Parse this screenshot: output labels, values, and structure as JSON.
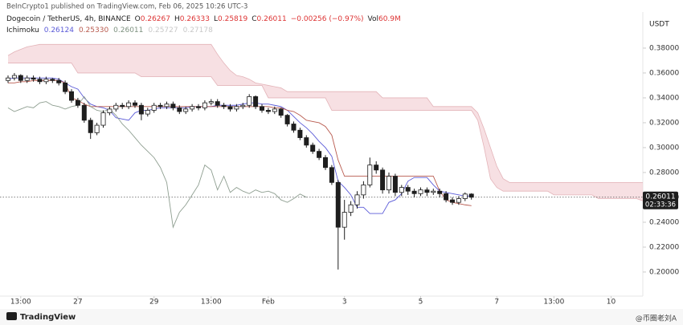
{
  "header": {
    "publisher": "BeInCrypto1 published on TradingView.com, Feb 06, 2025 10:26 UTC-3",
    "symbol": "Dogecoin / TetherUS, 4h, BINANCE",
    "ohlc": [
      {
        "key": "O",
        "value": "0.26267"
      },
      {
        "key": "H",
        "value": "0.26333"
      },
      {
        "key": "L",
        "value": "0.25819"
      },
      {
        "key": "C",
        "value": "0.26011"
      }
    ],
    "change": "−0.00256 (−0.97%)",
    "volume_key": "Vol",
    "volume": "60.9M",
    "currency": "USDT"
  },
  "footer": {
    "brand": "TradingView",
    "watermark": "@币圈老刘A"
  },
  "chart_data": {
    "type": "candlestick",
    "categories": [
      null,
      null,
      "13:00",
      null,
      null,
      null,
      null,
      null,
      null,
      null,
      null,
      "27",
      null,
      null,
      null,
      null,
      null,
      null,
      null,
      null,
      null,
      null,
      null,
      "29",
      null,
      null,
      null,
      null,
      null,
      null,
      null,
      null,
      "13:00",
      null,
      null,
      null,
      null,
      null,
      null,
      null,
      null,
      "Feb",
      null,
      null,
      null,
      null,
      null,
      null,
      null,
      null,
      null,
      null,
      null,
      "3",
      null,
      null,
      null,
      null,
      null,
      null,
      null,
      null,
      null,
      null,
      null,
      "5",
      null,
      null,
      null,
      null,
      null,
      null,
      null,
      null,
      null,
      null,
      null,
      "7",
      null,
      null,
      null,
      null,
      null,
      null,
      null,
      null,
      "13:00",
      null,
      null,
      null,
      null,
      null,
      null,
      null,
      null,
      "10",
      null,
      null,
      null,
      null,
      null
    ],
    "open": [
      0.354,
      0.356,
      0.358,
      0.354,
      0.356,
      0.355,
      0.353,
      0.355,
      0.354,
      0.352,
      0.345,
      0.338,
      0.334,
      0.322,
      0.312,
      0.318,
      0.328,
      0.331,
      0.334,
      0.333,
      0.336,
      0.334,
      0.327,
      0.33,
      0.334,
      0.333,
      0.335,
      0.332,
      0.329,
      0.331,
      0.333,
      0.332,
      0.336,
      0.337,
      0.334,
      0.333,
      0.331,
      0.333,
      0.334,
      0.341,
      0.333,
      0.33,
      0.329,
      0.331,
      0.326,
      0.319,
      0.314,
      0.308,
      0.302,
      0.297,
      0.292,
      0.284,
      0.272,
      0.236,
      0.248,
      0.254,
      0.262,
      0.27,
      0.286,
      0.282,
      0.266,
      0.277,
      0.264,
      0.268,
      0.265,
      0.263,
      0.266,
      0.264,
      0.265,
      0.263,
      0.258,
      0.256,
      0.259,
      0.26267,
      null,
      null,
      null,
      null,
      null,
      null,
      null,
      null,
      null,
      null,
      null,
      null,
      null,
      null,
      null,
      null,
      null,
      null,
      null,
      null,
      null,
      null,
      null,
      null,
      null,
      null,
      null
    ],
    "high": [
      0.358,
      0.36,
      0.359,
      0.358,
      0.358,
      0.357,
      0.357,
      0.356,
      0.356,
      0.354,
      0.347,
      0.34,
      0.336,
      0.324,
      0.32,
      0.33,
      0.333,
      0.336,
      0.336,
      0.338,
      0.338,
      0.336,
      0.332,
      0.336,
      0.336,
      0.337,
      0.337,
      0.334,
      0.333,
      0.335,
      0.335,
      0.338,
      0.339,
      0.339,
      0.336,
      0.335,
      0.335,
      0.336,
      0.343,
      0.342,
      0.335,
      0.332,
      0.333,
      0.332,
      0.327,
      0.321,
      0.316,
      0.31,
      0.304,
      0.299,
      0.294,
      0.286,
      0.274,
      0.258,
      0.257,
      0.265,
      0.273,
      0.292,
      0.289,
      0.284,
      0.28,
      0.279,
      0.27,
      0.27,
      0.267,
      0.268,
      0.268,
      0.267,
      0.267,
      0.265,
      0.26,
      0.261,
      0.264,
      0.26333,
      null,
      null,
      null,
      null,
      null,
      null,
      null,
      null,
      null,
      null,
      null,
      null,
      null,
      null,
      null,
      null,
      null,
      null,
      null,
      null,
      null,
      null,
      null,
      null,
      null,
      null,
      null
    ],
    "low": [
      0.352,
      0.354,
      0.352,
      0.352,
      0.353,
      0.351,
      0.351,
      0.352,
      0.35,
      0.343,
      0.336,
      0.332,
      0.32,
      0.307,
      0.31,
      0.316,
      0.326,
      0.329,
      0.331,
      0.331,
      0.332,
      0.322,
      0.325,
      0.328,
      0.331,
      0.331,
      0.33,
      0.327,
      0.327,
      0.329,
      0.33,
      0.33,
      0.334,
      0.332,
      0.331,
      0.329,
      0.329,
      0.331,
      0.332,
      0.331,
      0.328,
      0.327,
      0.327,
      0.324,
      0.317,
      0.312,
      0.306,
      0.3,
      0.295,
      0.29,
      0.282,
      0.27,
      0.202,
      0.226,
      0.245,
      0.251,
      0.259,
      0.268,
      0.279,
      0.263,
      0.263,
      0.261,
      0.261,
      0.262,
      0.26,
      0.261,
      0.261,
      0.262,
      0.26,
      0.256,
      0.254,
      0.254,
      0.257,
      0.25819,
      null,
      null,
      null,
      null,
      null,
      null,
      null,
      null,
      null,
      null,
      null,
      null,
      null,
      null,
      null,
      null,
      null,
      null,
      null,
      null,
      null,
      null,
      null,
      null,
      null,
      null,
      null
    ],
    "close": [
      0.356,
      0.358,
      0.354,
      0.356,
      0.355,
      0.353,
      0.355,
      0.354,
      0.352,
      0.345,
      0.338,
      0.334,
      0.322,
      0.312,
      0.318,
      0.328,
      0.331,
      0.334,
      0.333,
      0.336,
      0.334,
      0.327,
      0.33,
      0.334,
      0.333,
      0.335,
      0.332,
      0.329,
      0.331,
      0.333,
      0.332,
      0.336,
      0.337,
      0.334,
      0.333,
      0.331,
      0.333,
      0.334,
      0.341,
      0.333,
      0.33,
      0.329,
      0.331,
      0.326,
      0.319,
      0.314,
      0.308,
      0.302,
      0.297,
      0.292,
      0.284,
      0.272,
      0.236,
      0.248,
      0.254,
      0.262,
      0.27,
      0.286,
      0.282,
      0.266,
      0.277,
      0.264,
      0.268,
      0.265,
      0.263,
      0.266,
      0.264,
      0.265,
      0.263,
      0.258,
      0.256,
      0.259,
      0.26267,
      0.26011,
      null,
      null,
      null,
      null,
      null,
      null,
      null,
      null,
      null,
      null,
      null,
      null,
      null,
      null,
      null,
      null,
      null,
      null,
      null,
      null,
      null,
      null,
      null,
      null,
      null,
      null,
      null
    ],
    "up_color": "#ffffff",
    "down_color": "#1e1e1e",
    "wick_color": "#1e1e1e",
    "ichimoku": {
      "label": "Ichimoku",
      "legend": [
        {
          "label": "0.26124",
          "color": "#5b5bd8"
        },
        {
          "label": "0.25330",
          "color": "#b85a4e"
        },
        {
          "label": "0.26011",
          "color": "#7d917f"
        },
        {
          "label": "0.25727",
          "color": "#c8c8c8"
        },
        {
          "label": "0.27178",
          "color": "#c8c8c8"
        }
      ],
      "lines": [
        {
          "color": "#5b5bd8",
          "values": [
            0.355,
            0.356,
            0.356,
            0.356,
            0.356,
            0.356,
            0.356,
            0.356,
            0.355,
            0.352,
            0.349,
            0.347,
            0.34,
            0.335,
            0.333,
            0.332,
            0.33,
            0.324,
            0.323,
            0.322,
            0.328,
            0.33,
            0.33,
            0.331,
            0.332,
            0.332,
            0.332,
            0.332,
            0.332,
            0.333,
            0.333,
            0.333,
            0.333,
            0.334,
            0.334,
            0.334,
            0.334,
            0.335,
            0.336,
            0.336,
            0.335,
            0.335,
            0.334,
            0.333,
            0.33,
            0.325,
            0.32,
            0.316,
            0.311,
            0.305,
            0.3,
            0.293,
            0.273,
            0.268,
            0.262,
            0.252,
            0.252,
            0.247,
            0.247,
            0.247,
            0.256,
            0.258,
            0.263,
            0.273,
            0.276,
            0.276,
            0.276,
            0.27,
            0.265,
            0.264,
            0.263,
            0.262,
            0.261,
            0.26124,
            null,
            null,
            null,
            null,
            null,
            null,
            null,
            null,
            null,
            null,
            null,
            null,
            null,
            null,
            null,
            null,
            null,
            null,
            null,
            null,
            null,
            null,
            null,
            null,
            null,
            null,
            null
          ]
        },
        {
          "color": "#b85a4e",
          "values": [
            0.352,
            0.352,
            0.353,
            0.353,
            0.354,
            0.354,
            0.354,
            0.354,
            0.354,
            0.352,
            0.34,
            0.338,
            0.335,
            0.333,
            0.333,
            0.333,
            0.333,
            0.333,
            0.333,
            0.333,
            0.333,
            0.333,
            0.333,
            0.333,
            0.333,
            0.333,
            0.333,
            0.333,
            0.333,
            0.333,
            0.333,
            0.333,
            0.333,
            0.333,
            0.333,
            0.333,
            0.333,
            0.333,
            0.333,
            0.333,
            0.333,
            0.333,
            0.332,
            0.332,
            0.33,
            0.329,
            0.326,
            0.322,
            0.321,
            0.32,
            0.317,
            0.31,
            0.29,
            0.277,
            0.277,
            0.277,
            0.277,
            0.277,
            0.277,
            0.277,
            0.277,
            0.277,
            0.277,
            0.277,
            0.277,
            0.277,
            0.277,
            0.277,
            0.265,
            0.258,
            0.256,
            0.255,
            0.254,
            0.2533,
            null,
            null,
            null,
            null,
            null,
            null,
            null,
            null,
            null,
            null,
            null,
            null,
            null,
            null,
            null,
            null,
            null,
            null,
            null,
            null,
            null,
            null,
            null,
            null,
            null,
            null,
            null
          ]
        },
        {
          "color": "#8e9e90",
          "values": [
            0.332,
            0.329,
            0.331,
            0.333,
            0.332,
            0.336,
            0.337,
            0.334,
            0.333,
            0.331,
            0.333,
            0.334,
            0.341,
            0.333,
            0.33,
            0.329,
            0.331,
            0.326,
            0.319,
            0.314,
            0.308,
            0.302,
            0.297,
            0.292,
            0.284,
            0.272,
            0.236,
            0.248,
            0.254,
            0.262,
            0.27,
            0.286,
            0.282,
            0.266,
            0.277,
            0.264,
            0.268,
            0.265,
            0.263,
            0.266,
            0.264,
            0.265,
            0.263,
            0.258,
            0.256,
            0.259,
            0.26267,
            0.26011,
            null,
            null,
            null,
            null,
            null,
            null,
            null,
            null,
            null,
            null,
            null,
            null,
            null,
            null,
            null,
            null,
            null,
            null,
            null,
            null,
            null,
            null,
            null,
            null,
            null,
            null,
            null,
            null,
            null,
            null,
            null,
            null,
            null,
            null,
            null,
            null,
            null,
            null,
            null,
            null,
            null,
            null,
            null,
            null,
            null,
            null,
            null,
            null,
            null,
            null,
            null,
            null,
            null
          ]
        }
      ],
      "cloud": {
        "color": "#f4d6d9",
        "edge_color": "#e3b3b8",
        "span_a": [
          0.368,
          0.368,
          0.368,
          0.368,
          0.368,
          0.368,
          0.368,
          0.368,
          0.368,
          0.368,
          0.368,
          0.36,
          0.36,
          0.36,
          0.36,
          0.36,
          0.36,
          0.36,
          0.36,
          0.36,
          0.36,
          0.357,
          0.357,
          0.357,
          0.357,
          0.357,
          0.357,
          0.357,
          0.357,
          0.357,
          0.357,
          0.357,
          0.357,
          0.35,
          0.35,
          0.35,
          0.35,
          0.35,
          0.35,
          0.35,
          0.35,
          0.34,
          0.34,
          0.34,
          0.34,
          0.34,
          0.34,
          0.34,
          0.34,
          0.34,
          0.34,
          0.33,
          0.33,
          0.33,
          0.33,
          0.33,
          0.33,
          0.33,
          0.33,
          0.33,
          0.33,
          0.33,
          0.33,
          0.33,
          0.33,
          0.33,
          0.33,
          0.33,
          0.33,
          0.33,
          0.33,
          0.33,
          0.33,
          0.33,
          0.322,
          0.3,
          0.275,
          0.268,
          0.265,
          0.265,
          0.265,
          0.265,
          0.265,
          0.265,
          0.265,
          0.265,
          0.262,
          0.262,
          0.262,
          0.262,
          0.262,
          0.262,
          0.262,
          0.259,
          0.259,
          0.259,
          0.259,
          0.259,
          0.259,
          0.259,
          0.25727
        ],
        "span_b": [
          0.374,
          0.377,
          0.379,
          0.381,
          0.382,
          0.383,
          0.383,
          0.383,
          0.383,
          0.383,
          0.383,
          0.383,
          0.383,
          0.383,
          0.383,
          0.383,
          0.383,
          0.383,
          0.383,
          0.383,
          0.383,
          0.383,
          0.383,
          0.383,
          0.383,
          0.383,
          0.383,
          0.383,
          0.383,
          0.383,
          0.383,
          0.383,
          0.383,
          0.375,
          0.368,
          0.362,
          0.358,
          0.357,
          0.355,
          0.352,
          0.351,
          0.35,
          0.349,
          0.348,
          0.345,
          0.345,
          0.345,
          0.345,
          0.345,
          0.345,
          0.345,
          0.345,
          0.345,
          0.345,
          0.345,
          0.345,
          0.345,
          0.345,
          0.345,
          0.34,
          0.34,
          0.34,
          0.34,
          0.34,
          0.34,
          0.34,
          0.34,
          0.333,
          0.333,
          0.333,
          0.333,
          0.333,
          0.333,
          0.333,
          0.328,
          0.315,
          0.3,
          0.285,
          0.275,
          0.272,
          0.272,
          0.272,
          0.272,
          0.272,
          0.272,
          0.272,
          0.272,
          0.272,
          0.272,
          0.272,
          0.272,
          0.272,
          0.272,
          0.272,
          0.272,
          0.272,
          0.272,
          0.272,
          0.272,
          0.272,
          0.27178
        ]
      }
    },
    "last_price": {
      "value": 0.26011,
      "label": "0.26011"
    },
    "countdown": "02:33:36",
    "ylim": [
      0.1832,
      0.409
    ],
    "yticks": [
      {
        "value": 0.2,
        "label": "0.20000"
      },
      {
        "value": 0.22,
        "label": "0.22000"
      },
      {
        "value": 0.24,
        "label": "0.24000"
      },
      {
        "value": 0.26,
        "label": "0.26000"
      },
      {
        "value": 0.28,
        "label": "0.28000"
      },
      {
        "value": 0.3,
        "label": "0.30000"
      },
      {
        "value": 0.32,
        "label": "0.32000"
      },
      {
        "value": 0.34,
        "label": "0.34000"
      },
      {
        "value": 0.36,
        "label": "0.36000"
      },
      {
        "value": 0.38,
        "label": "0.38000"
      }
    ]
  }
}
